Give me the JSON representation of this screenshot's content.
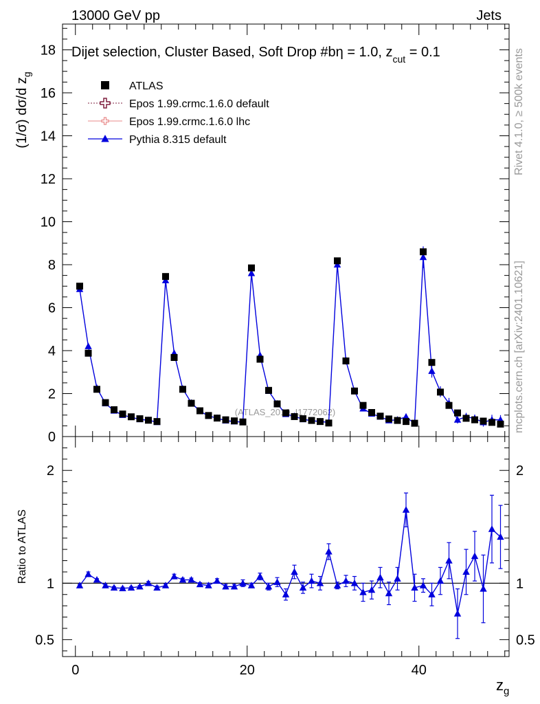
{
  "header": {
    "left_label": "13000 GeV pp",
    "right_label": "Jets"
  },
  "side_labels": {
    "rivet": "Rivet 4.1.0, ≥ 500k events",
    "mcplots": "mcplots.cern.ch [arXiv:2401.10621]"
  },
  "watermark": "(ATLAS_2019_I1772062)",
  "colors": {
    "atlas": "#000000",
    "epos_default": "#7f1f3f",
    "epos_lhc": "#e88888",
    "pythia": "#0000dd"
  },
  "chart_data": [
    {
      "type": "scatter",
      "panel": "main",
      "title": "Dijet selection, Cluster Based, Soft Drop #b",
      "title_suffix": {
        "eta": "η = 1.0, z",
        "cut_sub": "cut",
        "cut_val": " = 0.1"
      },
      "ylabel": "(1/σ) dσ/d z",
      "ylabel_sub": "g",
      "xlim": [
        -1.5,
        50.5
      ],
      "ylim": [
        0,
        19.2
      ],
      "yticks": [
        0,
        2,
        4,
        6,
        8,
        10,
        12,
        14,
        16,
        18
      ],
      "ytick_labels": [
        "0",
        "2",
        "4",
        "6",
        "8",
        "10",
        "12",
        "14",
        "16",
        "18"
      ],
      "legend": [
        {
          "name": "ATLAS",
          "marker": "square"
        },
        {
          "name": "Epos 1.99.crmc.1.6.0 default",
          "marker": "cross-open"
        },
        {
          "name": "Epos 1.99.crmc.1.6.0 lhc",
          "marker": "cross-small"
        },
        {
          "name": "Pythia 8.315 default",
          "marker": "triangle"
        }
      ],
      "x": [
        0.5,
        1.5,
        2.5,
        3.5,
        4.5,
        5.5,
        6.5,
        7.5,
        8.5,
        9.5,
        10.5,
        11.5,
        12.5,
        13.5,
        14.5,
        15.5,
        16.5,
        17.5,
        18.5,
        19.5,
        20.5,
        21.5,
        22.5,
        23.5,
        24.5,
        25.5,
        26.5,
        27.5,
        28.5,
        29.5,
        30.5,
        31.5,
        32.5,
        33.5,
        34.5,
        35.5,
        36.5,
        37.5,
        38.5,
        39.5,
        40.5,
        41.5,
        42.5,
        43.5,
        44.5,
        45.5,
        46.5,
        47.5,
        48.5,
        49.5
      ],
      "series": [
        {
          "name": "ATLAS",
          "values": [
            7.0,
            3.88,
            2.2,
            1.58,
            1.25,
            1.05,
            0.92,
            0.83,
            0.76,
            0.7,
            7.45,
            3.68,
            2.2,
            1.55,
            1.2,
            0.98,
            0.86,
            0.78,
            0.73,
            0.68,
            7.85,
            3.6,
            2.15,
            1.52,
            1.1,
            0.93,
            0.83,
            0.75,
            0.7,
            0.63,
            8.18,
            3.52,
            2.12,
            1.45,
            1.12,
            0.95,
            0.82,
            0.75,
            0.7,
            0.62,
            8.6,
            3.45,
            2.07,
            1.45,
            1.1,
            0.85,
            0.78,
            0.72,
            0.66,
            0.58
          ]
        },
        {
          "name": "Pythia 8.315 default",
          "values": [
            6.86,
            4.2,
            2.26,
            1.54,
            1.2,
            1.0,
            0.9,
            0.8,
            0.76,
            0.67,
            7.27,
            3.88,
            2.22,
            1.57,
            1.18,
            0.96,
            0.86,
            0.74,
            0.7,
            0.67,
            7.6,
            3.78,
            2.12,
            1.53,
            1.04,
            0.95,
            0.8,
            0.74,
            0.7,
            0.66,
            8.0,
            3.53,
            2.12,
            1.3,
            1.06,
            0.92,
            0.75,
            0.78,
            0.92,
            0.6,
            8.35,
            3.05,
            2.09,
            1.55,
            0.78,
            0.92,
            0.84,
            0.66,
            0.78,
            0.78
          ]
        }
      ]
    },
    {
      "type": "line",
      "panel": "ratio",
      "ylabel": "Ratio to ATLAS",
      "xlabel": "z",
      "xlabel_sub": "g",
      "xlim": [
        -1.5,
        50.5
      ],
      "ylim": [
        0.35,
        2.3
      ],
      "yticks": [
        0.5,
        1,
        2
      ],
      "ytick_labels": [
        "0.5",
        "1",
        "2"
      ],
      "xticks": [
        0,
        20,
        40
      ],
      "xtick_labels": [
        "0",
        "20",
        "40"
      ],
      "reference": 1.0,
      "series": [
        {
          "name": "Pythia 8.315 / ATLAS",
          "values": [
            0.98,
            1.08,
            1.03,
            0.98,
            0.96,
            0.955,
            0.96,
            0.97,
            1.0,
            0.96,
            0.98,
            1.06,
            1.03,
            1.03,
            0.99,
            0.98,
            1.02,
            0.97,
            0.97,
            1.0,
            0.98,
            1.06,
            0.97,
            1.01,
            0.9,
            1.1,
            0.96,
            1.02,
            1.0,
            1.28,
            0.98,
            1.02,
            1.0,
            0.92,
            0.94,
            1.05,
            0.91,
            1.04,
            1.65,
            0.96,
            0.98,
            0.9,
            1.02,
            1.2,
            0.73,
            1.1,
            1.24,
            0.95,
            1.48,
            1.41
          ],
          "errors": [
            0.01,
            0.02,
            0.01,
            0.01,
            0.01,
            0.01,
            0.01,
            0.01,
            0.015,
            0.015,
            0.015,
            0.02,
            0.015,
            0.015,
            0.015,
            0.02,
            0.02,
            0.02,
            0.02,
            0.03,
            0.02,
            0.03,
            0.03,
            0.04,
            0.05,
            0.06,
            0.05,
            0.06,
            0.06,
            0.07,
            0.03,
            0.05,
            0.06,
            0.08,
            0.08,
            0.09,
            0.1,
            0.1,
            0.15,
            0.12,
            0.06,
            0.1,
            0.12,
            0.16,
            0.22,
            0.2,
            0.22,
            0.3,
            0.3,
            0.28
          ]
        }
      ]
    }
  ]
}
